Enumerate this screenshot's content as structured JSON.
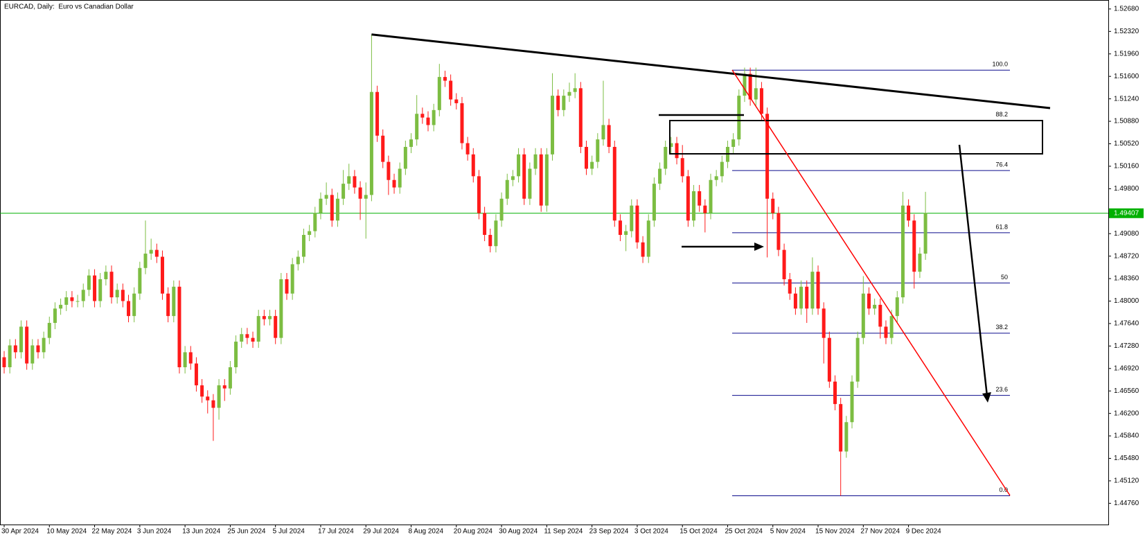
{
  "chart_data": {
    "type": "candlestick",
    "title": "EURCAD, Daily:  Euro vs Canadian Dollar",
    "up_color": "#7cbd42",
    "down_color": "#ff1a1a",
    "categories": [
      "30 Apr 2024",
      null,
      null,
      null,
      null,
      null,
      null,
      null,
      "10 May 2024",
      null,
      null,
      null,
      null,
      null,
      null,
      null,
      "22 May 2024",
      null,
      null,
      null,
      null,
      null,
      null,
      null,
      "3 Jun 2024",
      null,
      null,
      null,
      null,
      null,
      null,
      null,
      "13 Jun 2024",
      null,
      null,
      null,
      null,
      null,
      null,
      null,
      "25 Jun 2024",
      null,
      null,
      null,
      null,
      null,
      null,
      null,
      "5 Jul 2024",
      null,
      null,
      null,
      null,
      null,
      null,
      null,
      "17 Jul 2024",
      null,
      null,
      null,
      null,
      null,
      null,
      null,
      "29 Jul 2024",
      null,
      null,
      null,
      null,
      null,
      null,
      null,
      "8 Aug 2024",
      null,
      null,
      null,
      null,
      null,
      null,
      null,
      "20 Aug 2024",
      null,
      null,
      null,
      null,
      null,
      null,
      null,
      "30 Aug 2024",
      null,
      null,
      null,
      null,
      null,
      null,
      null,
      "11 Sep 2024",
      null,
      null,
      null,
      null,
      null,
      null,
      null,
      "23 Sep 2024",
      null,
      null,
      null,
      null,
      null,
      null,
      null,
      "3 Oct 2024",
      null,
      null,
      null,
      null,
      null,
      null,
      null,
      "15 Oct 2024",
      null,
      null,
      null,
      null,
      null,
      null,
      null,
      "25 Oct 2024",
      null,
      null,
      null,
      null,
      null,
      null,
      null,
      "5 Nov 2024",
      null,
      null,
      null,
      null,
      null,
      null,
      null,
      "15 Nov 2024",
      null,
      null,
      null,
      null,
      null,
      null,
      null,
      "27 Nov 2024",
      null,
      null,
      null,
      null,
      null,
      null,
      null,
      "9 Dec 2024",
      null,
      null,
      null
    ],
    "open": [
      1.471,
      1.4694,
      1.4729,
      1.4718,
      1.4759,
      1.47,
      1.4729,
      1.4718,
      1.4741,
      1.4765,
      1.4788,
      1.4794,
      1.4806,
      1.48,
      1.48,
      1.4818,
      1.4841,
      1.48,
      1.4835,
      1.4847,
      1.4806,
      1.4818,
      1.48,
      1.4776,
      1.4812,
      1.4853,
      1.4876,
      1.4882,
      1.4871,
      1.4812,
      1.4776,
      1.4823,
      1.4694,
      1.4718,
      1.47,
      1.4665,
      1.4647,
      1.4641,
      1.4629,
      1.4665,
      1.466,
      1.4694,
      1.4735,
      1.4747,
      1.4741,
      1.4735,
      1.4776,
      1.4771,
      1.4776,
      1.4741,
      1.4835,
      1.4812,
      1.4859,
      1.4871,
      1.4906,
      1.4912,
      1.4941,
      1.4964,
      1.497,
      1.4929,
      1.4964,
      1.4988,
      1.5,
      1.4982,
      1.4964,
      1.497,
      1.5135,
      1.5065,
      1.5023,
      1.4994,
      1.4982,
      1.5012,
      1.5047,
      1.5059,
      1.51,
      1.5094,
      1.5082,
      1.5106,
      1.5159,
      1.5153,
      1.5123,
      1.5117,
      1.5053,
      1.5035,
      1.5,
      1.4941,
      1.4906,
      1.4888,
      1.4929,
      1.4964,
      1.4994,
      1.5,
      1.5035,
      1.4964,
      1.5012,
      1.5035,
      1.4953,
      1.5035,
      1.5129,
      1.5106,
      1.5129,
      1.5135,
      1.5141,
      1.5047,
      1.5012,
      1.5023,
      1.5059,
      1.5082,
      1.5047,
      1.4929,
      1.4906,
      1.4912,
      1.4953,
      1.4894,
      1.4871,
      1.4929,
      1.4988,
      1.5012,
      1.5047,
      1.5053,
      1.5029,
      1.5,
      1.4929,
      1.4976,
      1.4953,
      1.4941,
      1.4994,
      1.5,
      1.5023,
      1.5047,
      1.5059,
      1.5129,
      1.5164,
      1.5123,
      1.5141,
      1.51,
      1.4964,
      1.4941,
      1.4882,
      1.4835,
      1.4812,
      1.4788,
      1.4823,
      1.4788,
      1.4847,
      1.4788,
      1.4741,
      1.4671,
      1.4635,
      1.4559,
      1.4606,
      1.4671,
      1.4741,
      1.4812,
      1.4788,
      1.4794,
      1.4759,
      1.4741,
      1.4776,
      1.4806,
      1.4953,
      1.4929,
      1.4847,
      1.4876
    ],
    "high": [
      1.472,
      1.4739,
      1.4739,
      1.4769,
      1.4769,
      1.4739,
      1.4739,
      1.4751,
      1.4775,
      1.4798,
      1.4804,
      1.4816,
      1.4816,
      1.481,
      1.4828,
      1.4851,
      1.4851,
      1.4845,
      1.4857,
      1.4857,
      1.4828,
      1.4828,
      1.481,
      1.4822,
      1.4863,
      1.4929,
      1.49,
      1.4892,
      1.4881,
      1.4822,
      1.4833,
      1.4833,
      1.4728,
      1.4728,
      1.471,
      1.4675,
      1.4657,
      1.4651,
      1.4675,
      1.4675,
      1.4704,
      1.4745,
      1.4757,
      1.4757,
      1.4751,
      1.4786,
      1.4786,
      1.4786,
      1.4786,
      1.4845,
      1.4845,
      1.4869,
      1.4881,
      1.4916,
      1.4922,
      1.4951,
      1.4974,
      1.499,
      1.498,
      1.4974,
      1.501,
      1.502,
      1.501,
      1.4992,
      1.499,
      1.5227,
      1.5145,
      1.5075,
      1.5033,
      1.5004,
      1.5022,
      1.5057,
      1.5069,
      1.513,
      1.511,
      1.5104,
      1.5116,
      1.518,
      1.5169,
      1.5163,
      1.5133,
      1.5127,
      1.5063,
      1.5045,
      1.501,
      1.4951,
      1.4916,
      1.4939,
      1.4974,
      1.5004,
      1.501,
      1.5045,
      1.5045,
      1.5022,
      1.5045,
      1.5045,
      1.5045,
      1.5165,
      1.5139,
      1.5139,
      1.515,
      1.5165,
      1.5151,
      1.5057,
      1.5033,
      1.5069,
      1.5153,
      1.5092,
      1.5057,
      1.4939,
      1.4922,
      1.4963,
      1.4963,
      1.4904,
      1.4939,
      1.4998,
      1.5022,
      1.5057,
      1.5063,
      1.5063,
      1.505,
      1.501,
      1.4986,
      1.4986,
      1.4963,
      1.5004,
      1.501,
      1.5033,
      1.5057,
      1.5069,
      1.5139,
      1.5174,
      1.5174,
      1.5174,
      1.5151,
      1.511,
      1.4974,
      1.4951,
      1.4892,
      1.4845,
      1.4822,
      1.4833,
      1.4833,
      1.487,
      1.4857,
      1.4798,
      1.4751,
      1.4681,
      1.4645,
      1.4616,
      1.4681,
      1.4751,
      1.484,
      1.4822,
      1.4804,
      1.4804,
      1.4769,
      1.4786,
      1.4816,
      1.4975,
      1.4963,
      1.4939,
      1.4886,
      1.4975
    ],
    "low": [
      1.4684,
      1.4684,
      1.4708,
      1.4708,
      1.469,
      1.469,
      1.4708,
      1.4708,
      1.4731,
      1.4755,
      1.4778,
      1.4784,
      1.479,
      1.479,
      1.479,
      1.4808,
      1.479,
      1.479,
      1.4825,
      1.4796,
      1.4796,
      1.479,
      1.4766,
      1.4766,
      1.4802,
      1.4843,
      1.4866,
      1.4861,
      1.4802,
      1.4766,
      1.4766,
      1.4684,
      1.4684,
      1.469,
      1.4655,
      1.4637,
      1.462,
      1.4576,
      1.461,
      1.464,
      1.465,
      1.4684,
      1.4725,
      1.4731,
      1.4725,
      1.4725,
      1.4761,
      1.4761,
      1.4731,
      1.4731,
      1.4802,
      1.4802,
      1.4849,
      1.4861,
      1.4896,
      1.4902,
      1.4931,
      1.4954,
      1.4919,
      1.4919,
      1.4954,
      1.4978,
      1.4972,
      1.493,
      1.49,
      1.496,
      1.5055,
      1.5013,
      1.497,
      1.4972,
      1.4972,
      1.5002,
      1.5037,
      1.5049,
      1.5084,
      1.5072,
      1.5072,
      1.5096,
      1.5143,
      1.5113,
      1.5107,
      1.5043,
      1.5025,
      1.499,
      1.4931,
      1.4896,
      1.4878,
      1.4878,
      1.4919,
      1.4954,
      1.4984,
      1.499,
      1.4954,
      1.4954,
      1.5002,
      1.4943,
      1.4943,
      1.5025,
      1.5096,
      1.5096,
      1.5119,
      1.5125,
      1.5037,
      1.5002,
      1.5002,
      1.5013,
      1.5049,
      1.5037,
      1.4919,
      1.4896,
      1.488,
      1.4902,
      1.4884,
      1.4861,
      1.4861,
      1.4919,
      1.4978,
      1.5002,
      1.5037,
      1.5019,
      1.499,
      1.4919,
      1.4919,
      1.4943,
      1.491,
      1.4931,
      1.4984,
      1.499,
      1.5013,
      1.5037,
      1.5049,
      1.5119,
      1.5113,
      1.5113,
      1.509,
      1.487,
      1.4931,
      1.4872,
      1.4825,
      1.4802,
      1.4778,
      1.4778,
      1.4765,
      1.4778,
      1.4778,
      1.47,
      1.4661,
      1.4625,
      1.4488,
      1.4549,
      1.4596,
      1.4661,
      1.4731,
      1.4778,
      1.4778,
      1.474,
      1.4731,
      1.4731,
      1.4766,
      1.4796,
      1.4919,
      1.482,
      1.4837,
      1.4866
    ],
    "close": [
      1.4694,
      1.4729,
      1.4718,
      1.4759,
      1.47,
      1.4729,
      1.4718,
      1.4741,
      1.4765,
      1.4788,
      1.4794,
      1.4806,
      1.48,
      1.48,
      1.4818,
      1.4841,
      1.48,
      1.4835,
      1.4847,
      1.4806,
      1.4818,
      1.48,
      1.4776,
      1.4812,
      1.4853,
      1.4876,
      1.4882,
      1.4871,
      1.4812,
      1.4776,
      1.4823,
      1.4694,
      1.4718,
      1.47,
      1.4665,
      1.4647,
      1.4641,
      1.4629,
      1.4665,
      1.466,
      1.4694,
      1.4735,
      1.4747,
      1.4741,
      1.4735,
      1.4776,
      1.4771,
      1.4776,
      1.4741,
      1.4835,
      1.4812,
      1.4859,
      1.4871,
      1.4906,
      1.4912,
      1.4941,
      1.4964,
      1.497,
      1.4929,
      1.4964,
      1.4988,
      1.5,
      1.4982,
      1.4964,
      1.497,
      1.5135,
      1.5065,
      1.5023,
      1.4994,
      1.4982,
      1.5012,
      1.5047,
      1.5059,
      1.51,
      1.5094,
      1.5082,
      1.5106,
      1.5159,
      1.5153,
      1.5123,
      1.5117,
      1.5053,
      1.5035,
      1.5,
      1.4941,
      1.4906,
      1.4888,
      1.4929,
      1.4964,
      1.4994,
      1.5,
      1.5035,
      1.4964,
      1.5012,
      1.5035,
      1.4953,
      1.5035,
      1.5129,
      1.5106,
      1.5129,
      1.5135,
      1.5141,
      1.5047,
      1.5012,
      1.5023,
      1.5059,
      1.5082,
      1.5047,
      1.4929,
      1.4906,
      1.4912,
      1.4953,
      1.4894,
      1.4871,
      1.4929,
      1.4988,
      1.5012,
      1.5047,
      1.5053,
      1.5029,
      1.5,
      1.4929,
      1.4976,
      1.4953,
      1.4941,
      1.4994,
      1.5,
      1.5023,
      1.5047,
      1.5059,
      1.5129,
      1.5164,
      1.5123,
      1.5141,
      1.51,
      1.4964,
      1.4941,
      1.4882,
      1.4835,
      1.4812,
      1.4788,
      1.4823,
      1.4788,
      1.4847,
      1.4788,
      1.4741,
      1.4671,
      1.4635,
      1.4559,
      1.4606,
      1.4671,
      1.4741,
      1.4812,
      1.4788,
      1.4794,
      1.4759,
      1.4741,
      1.4776,
      1.4806,
      1.4953,
      1.4929,
      1.4847,
      1.4876,
      1.4941
    ],
    "ylim": [
      1.4442,
      1.5279
    ],
    "yticks": [
      {
        "value": 1.5268,
        "label": "1.52680"
      },
      {
        "value": 1.5232,
        "label": "1.52320"
      },
      {
        "value": 1.5196,
        "label": "1.51960"
      },
      {
        "value": 1.516,
        "label": "1.51600"
      },
      {
        "value": 1.5124,
        "label": "1.51240"
      },
      {
        "value": 1.5088,
        "label": "1.50880"
      },
      {
        "value": 1.5052,
        "label": "1.50520"
      },
      {
        "value": 1.5016,
        "label": "1.50160"
      },
      {
        "value": 1.498,
        "label": "1.49800"
      },
      {
        "value": 1.4908,
        "label": "1.49080"
      },
      {
        "value": 1.4872,
        "label": "1.48720"
      },
      {
        "value": 1.4836,
        "label": "1.48360"
      },
      {
        "value": 1.48,
        "label": "1.48000"
      },
      {
        "value": 1.4764,
        "label": "1.47640"
      },
      {
        "value": 1.4728,
        "label": "1.47280"
      },
      {
        "value": 1.4692,
        "label": "1.46920"
      },
      {
        "value": 1.4656,
        "label": "1.46560"
      },
      {
        "value": 1.462,
        "label": "1.46200"
      },
      {
        "value": 1.4584,
        "label": "1.45840"
      },
      {
        "value": 1.4548,
        "label": "1.45480"
      },
      {
        "value": 1.4512,
        "label": "1.45120"
      },
      {
        "value": 1.4476,
        "label": "1.44760"
      }
    ],
    "last_price": 1.49407,
    "last_price_color": "#00b000",
    "fibonacci": {
      "color": "#0a0a8c",
      "high": 1.517,
      "low": 1.4488,
      "levels": [
        {
          "value": 100,
          "label": "100.0"
        },
        88.2,
        76.4,
        61.8,
        50,
        38.2,
        23.6,
        {
          "value": 0,
          "label": "0.0"
        }
      ]
    }
  }
}
